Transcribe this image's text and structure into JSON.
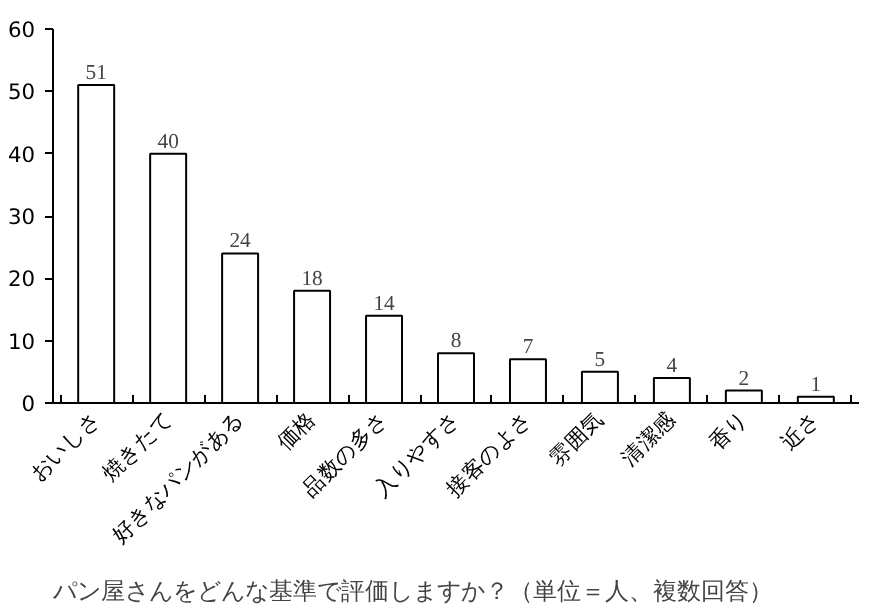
{
  "chart_data": {
    "type": "bar",
    "title": "パン屋さんをどんな基準で評価しますか？（単位＝人、複数回答）",
    "categories": [
      "おいしさ",
      "焼きたて",
      "好きなパンがある",
      "価格",
      "品数の多さ",
      "入りやすさ",
      "接客のよさ",
      "雰囲気",
      "清潔感",
      "香り",
      "近さ"
    ],
    "values": [
      51,
      40,
      24,
      18,
      14,
      8,
      7,
      5,
      4,
      2,
      1
    ],
    "color": "#ffffff",
    "ylim": [
      0,
      60
    ],
    "yticks": [
      0,
      10,
      20,
      30,
      40,
      50,
      60
    ],
    "grid": false,
    "data_labels": true
  }
}
